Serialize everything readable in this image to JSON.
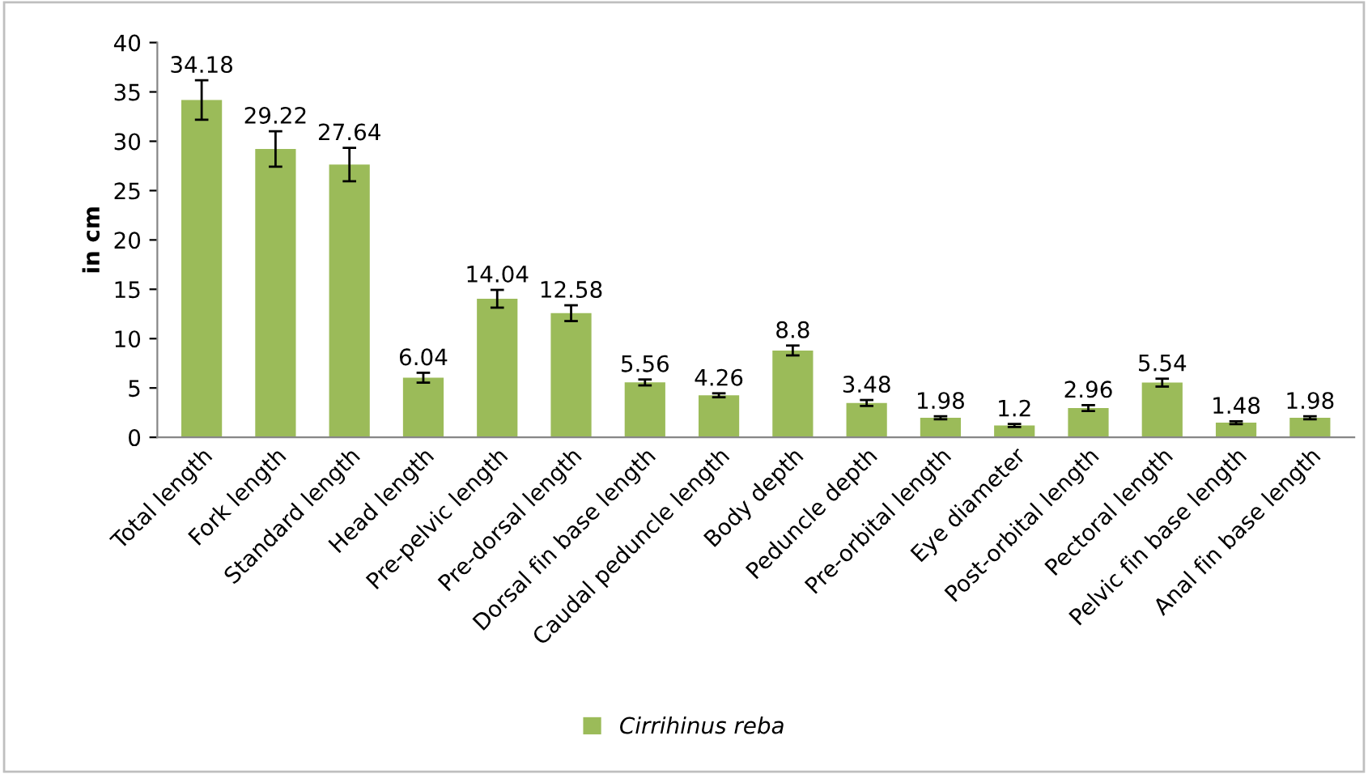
{
  "chart_data": {
    "type": "bar",
    "ylabel": "in cm",
    "categories": [
      "Total length",
      "Fork length",
      "Standard length",
      "Head length",
      "Pre-pelvic length",
      "Pre-dorsal length",
      "Dorsal fin base length",
      "Caudal peduncle length",
      "Body depth",
      "Peduncle depth",
      "Pre-orbital length",
      "Eye diameter",
      "Post-orbital length",
      "Pectoral length",
      "Pelvic fin base length",
      "Anal fin base length"
    ],
    "series": [
      {
        "name": "Cirrihinus reba",
        "color": "#9bbb59",
        "values": [
          34.18,
          29.22,
          27.64,
          6.04,
          14.04,
          12.58,
          5.56,
          4.26,
          8.8,
          3.48,
          1.98,
          1.2,
          2.96,
          5.54,
          1.48,
          1.98
        ],
        "errors": [
          2,
          1.8,
          1.7,
          0.5,
          0.9,
          0.8,
          0.3,
          0.2,
          0.5,
          0.3,
          0.15,
          0.15,
          0.3,
          0.4,
          0.15,
          0.15
        ]
      }
    ],
    "data_labels": true,
    "ylim": [
      0,
      40
    ],
    "yticks": [
      0,
      5,
      10,
      15,
      20,
      25,
      30,
      35,
      40
    ],
    "grid": false,
    "legend": "bottom"
  }
}
